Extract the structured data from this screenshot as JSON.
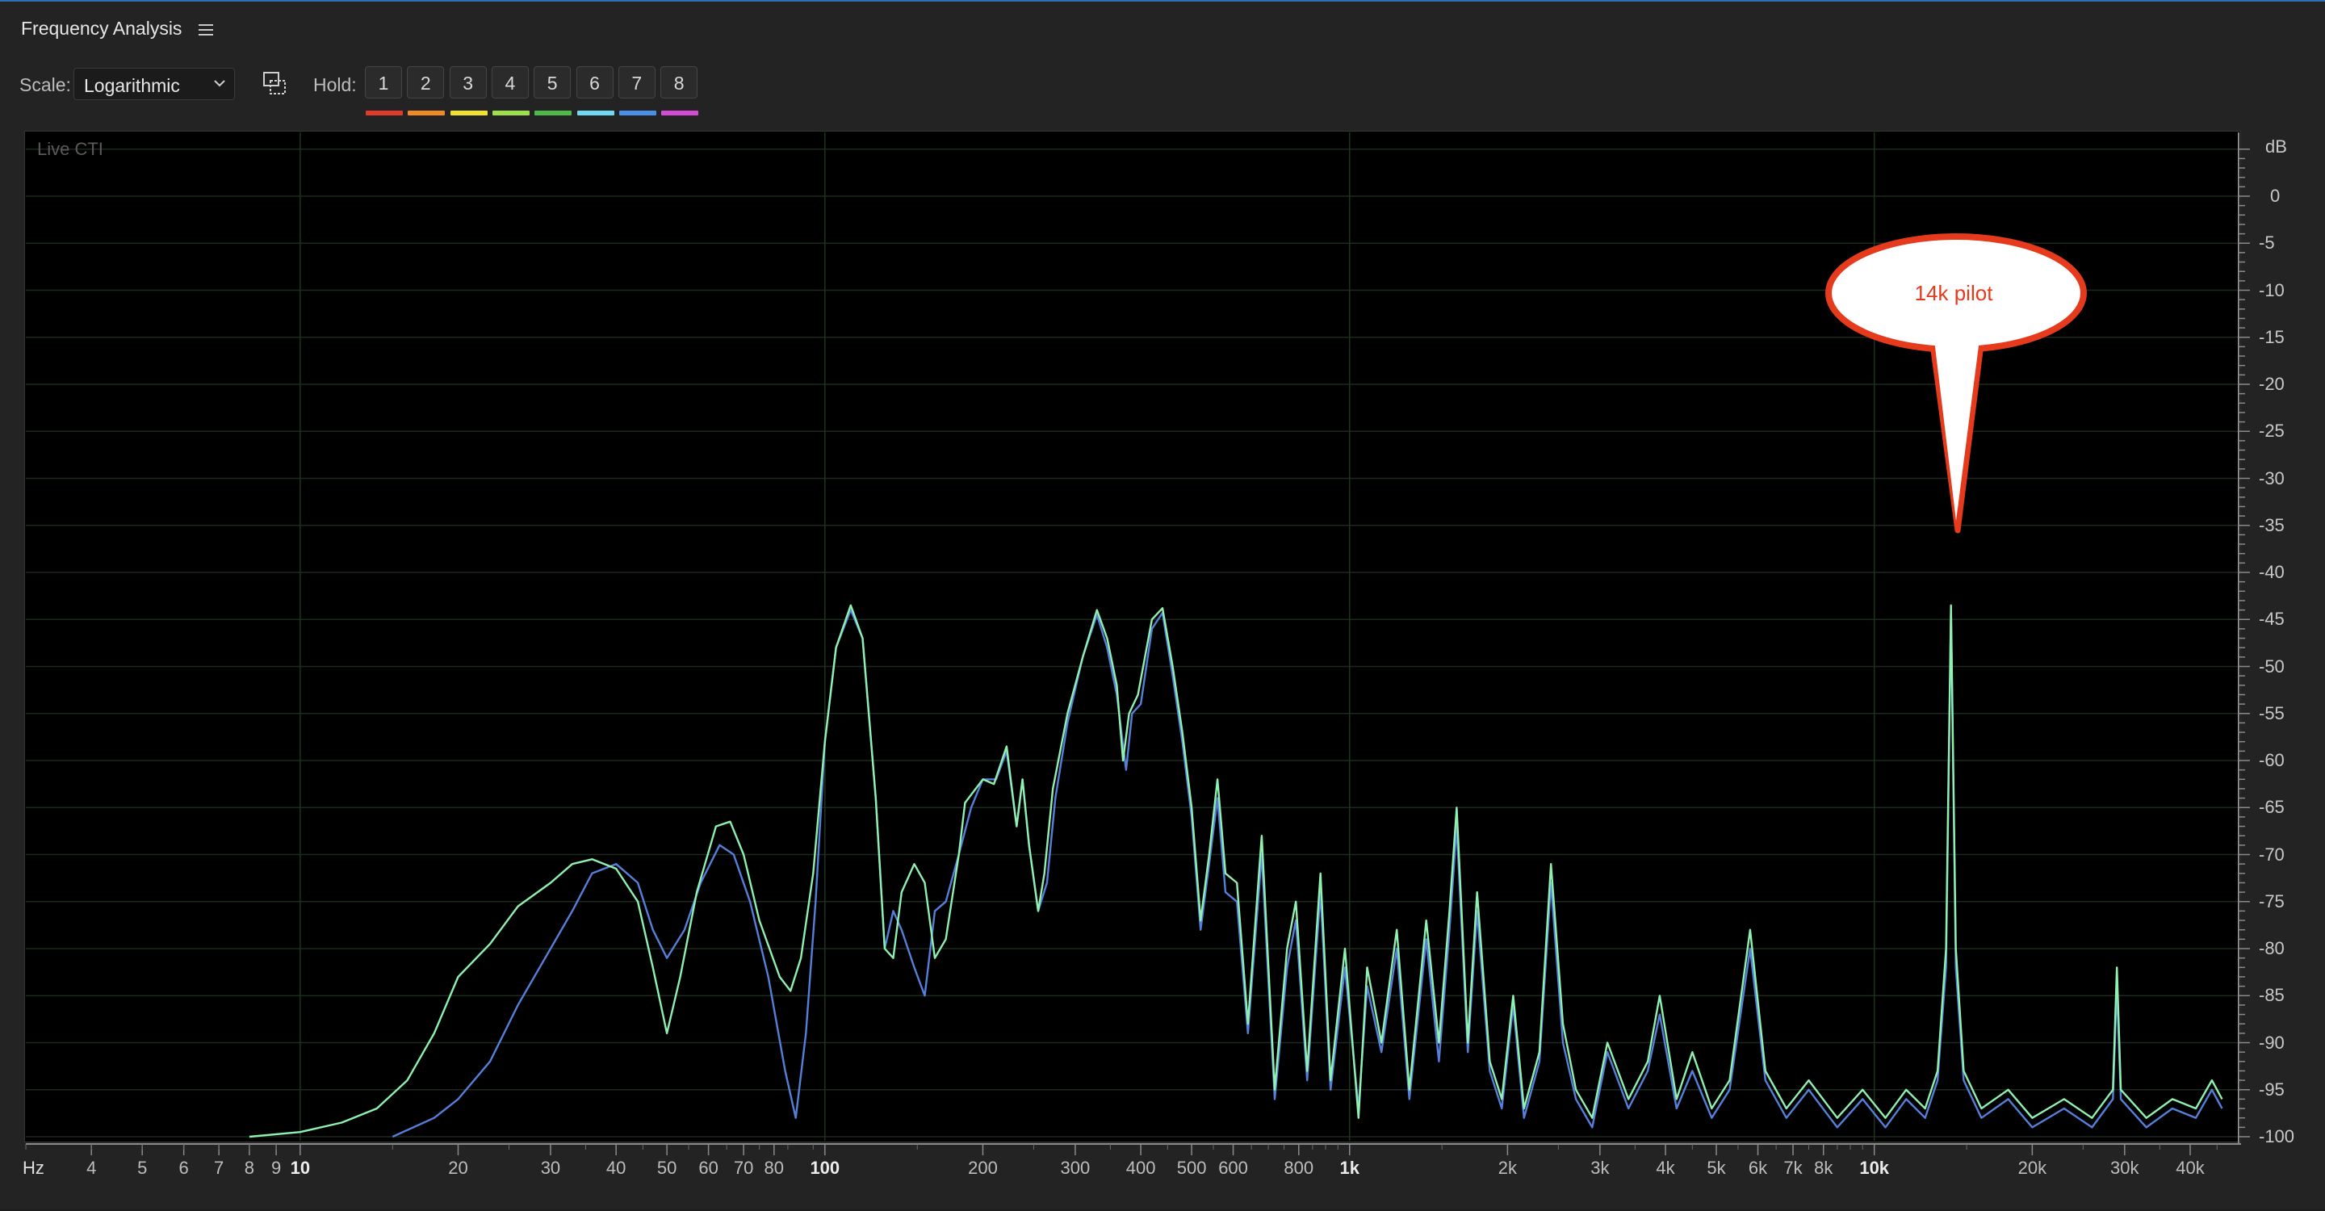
{
  "panel": {
    "title": "Frequency Analysis",
    "menu_icon": "hamburger-menu-icon"
  },
  "toolbar": {
    "scale_label": "Scale:",
    "scale_value": "Logarithmic",
    "hold_label": "Hold:",
    "hold_buttons": [
      {
        "label": "1",
        "color": "#e03a2b"
      },
      {
        "label": "2",
        "color": "#f08a24"
      },
      {
        "label": "3",
        "color": "#f0e130"
      },
      {
        "label": "4",
        "color": "#9ee04a"
      },
      {
        "label": "5",
        "color": "#4fb84a"
      },
      {
        "label": "6",
        "color": "#6fd8f2"
      },
      {
        "label": "7",
        "color": "#4a8fe8"
      },
      {
        "label": "8",
        "color": "#d64ad8"
      }
    ]
  },
  "graph": {
    "overlay_label": "Live CTI"
  },
  "axis": {
    "db_unit": "dB",
    "db_ticks": [
      "0",
      "-5",
      "-10",
      "-15",
      "-20",
      "-25",
      "-30",
      "-35",
      "-40",
      "-45",
      "-50",
      "-55",
      "-60",
      "-65",
      "-70",
      "-75",
      "-80",
      "-85",
      "-90",
      "-95",
      "-100"
    ],
    "hz_unit": "Hz",
    "hz_ticks": [
      {
        "label": "4",
        "f": 4
      },
      {
        "label": "5",
        "f": 5
      },
      {
        "label": "6",
        "f": 6
      },
      {
        "label": "7",
        "f": 7
      },
      {
        "label": "8",
        "f": 8
      },
      {
        "label": "9",
        "f": 9
      },
      {
        "label": "10",
        "f": 10,
        "major": true
      },
      {
        "label": "20",
        "f": 20
      },
      {
        "label": "30",
        "f": 30
      },
      {
        "label": "40",
        "f": 40
      },
      {
        "label": "50",
        "f": 50
      },
      {
        "label": "60",
        "f": 60
      },
      {
        "label": "70",
        "f": 70
      },
      {
        "label": "80",
        "f": 80
      },
      {
        "label": "100",
        "f": 100,
        "major": true
      },
      {
        "label": "200",
        "f": 200
      },
      {
        "label": "300",
        "f": 300
      },
      {
        "label": "400",
        "f": 400
      },
      {
        "label": "500",
        "f": 500
      },
      {
        "label": "600",
        "f": 600
      },
      {
        "label": "800",
        "f": 800
      },
      {
        "label": "1k",
        "f": 1000,
        "major": true
      },
      {
        "label": "2k",
        "f": 2000
      },
      {
        "label": "3k",
        "f": 3000
      },
      {
        "label": "4k",
        "f": 4000
      },
      {
        "label": "5k",
        "f": 5000
      },
      {
        "label": "6k",
        "f": 6000
      },
      {
        "label": "7k",
        "f": 7000
      },
      {
        "label": "8k",
        "f": 8000
      },
      {
        "label": "10k",
        "f": 10000,
        "major": true
      },
      {
        "label": "20k",
        "f": 20000
      },
      {
        "label": "30k",
        "f": 30000
      },
      {
        "label": "40k",
        "f": 40000
      }
    ]
  },
  "annotation": {
    "text": "14k pilot",
    "color": "#e53a1c"
  },
  "chart_data": {
    "type": "line",
    "x_scale": "log",
    "xlim": [
      3,
      50000
    ],
    "ylim": [
      -100,
      5
    ],
    "grid": true,
    "series": [
      {
        "color": "#8ff0b0",
        "points": [
          [
            8,
            -100
          ],
          [
            10,
            -99.5
          ],
          [
            12,
            -98.5
          ],
          [
            14,
            -97
          ],
          [
            16,
            -94
          ],
          [
            18,
            -89
          ],
          [
            20,
            -83
          ],
          [
            23,
            -79.5
          ],
          [
            26,
            -75.5
          ],
          [
            30,
            -73
          ],
          [
            33,
            -71
          ],
          [
            36,
            -70.5
          ],
          [
            40,
            -71.5
          ],
          [
            44,
            -75
          ],
          [
            47,
            -82
          ],
          [
            50,
            -89
          ],
          [
            53,
            -83
          ],
          [
            57,
            -74
          ],
          [
            62,
            -67
          ],
          [
            66,
            -66.5
          ],
          [
            70,
            -70
          ],
          [
            75,
            -77
          ],
          [
            82,
            -83
          ],
          [
            86,
            -84.5
          ],
          [
            90,
            -81
          ],
          [
            95,
            -72
          ],
          [
            100,
            -58
          ],
          [
            105,
            -48
          ],
          [
            112,
            -43.5
          ],
          [
            118,
            -47
          ],
          [
            125,
            -64
          ],
          [
            130,
            -80
          ],
          [
            135,
            -81
          ],
          [
            140,
            -74
          ],
          [
            148,
            -71
          ],
          [
            155,
            -73
          ],
          [
            162,
            -81
          ],
          [
            170,
            -79
          ],
          [
            180,
            -70
          ],
          [
            185,
            -64.5
          ],
          [
            200,
            -62
          ],
          [
            210,
            -62.5
          ],
          [
            222,
            -58.5
          ],
          [
            232,
            -67
          ],
          [
            238,
            -62
          ],
          [
            245,
            -69
          ],
          [
            255,
            -76
          ],
          [
            262,
            -72
          ],
          [
            272,
            -63
          ],
          [
            290,
            -55
          ],
          [
            310,
            -49
          ],
          [
            330,
            -44
          ],
          [
            345,
            -47
          ],
          [
            360,
            -52
          ],
          [
            370,
            -60
          ],
          [
            380,
            -55
          ],
          [
            395,
            -53
          ],
          [
            420,
            -45
          ],
          [
            440,
            -43.8
          ],
          [
            460,
            -50
          ],
          [
            480,
            -57
          ],
          [
            500,
            -65
          ],
          [
            520,
            -77
          ],
          [
            540,
            -70
          ],
          [
            560,
            -62
          ],
          [
            580,
            -72
          ],
          [
            610,
            -73
          ],
          [
            640,
            -88
          ],
          [
            680,
            -68
          ],
          [
            720,
            -95
          ],
          [
            760,
            -80
          ],
          [
            790,
            -75
          ],
          [
            830,
            -93
          ],
          [
            880,
            -72
          ],
          [
            920,
            -94
          ],
          [
            980,
            -80
          ],
          [
            1040,
            -98
          ],
          [
            1080,
            -82
          ],
          [
            1150,
            -90
          ],
          [
            1230,
            -78
          ],
          [
            1300,
            -95
          ],
          [
            1400,
            -77
          ],
          [
            1480,
            -90
          ],
          [
            1550,
            -76
          ],
          [
            1600,
            -65
          ],
          [
            1680,
            -90
          ],
          [
            1750,
            -74
          ],
          [
            1850,
            -92
          ],
          [
            1950,
            -96
          ],
          [
            2050,
            -85
          ],
          [
            2150,
            -97
          ],
          [
            2300,
            -91
          ],
          [
            2420,
            -71
          ],
          [
            2550,
            -88
          ],
          [
            2700,
            -95
          ],
          [
            2900,
            -98
          ],
          [
            3100,
            -90
          ],
          [
            3400,
            -96
          ],
          [
            3700,
            -92
          ],
          [
            3900,
            -85
          ],
          [
            4200,
            -96
          ],
          [
            4500,
            -91
          ],
          [
            4900,
            -97
          ],
          [
            5300,
            -94
          ],
          [
            5800,
            -78
          ],
          [
            6200,
            -93
          ],
          [
            6800,
            -97
          ],
          [
            7500,
            -94
          ],
          [
            8500,
            -98
          ],
          [
            9500,
            -95
          ],
          [
            10500,
            -98
          ],
          [
            11500,
            -95
          ],
          [
            12500,
            -97
          ],
          [
            13200,
            -93
          ],
          [
            13700,
            -80
          ],
          [
            14000,
            -43.5
          ],
          [
            14300,
            -80
          ],
          [
            14800,
            -93
          ],
          [
            16000,
            -97
          ],
          [
            18000,
            -95
          ],
          [
            20000,
            -98
          ],
          [
            23000,
            -96
          ],
          [
            26000,
            -98
          ],
          [
            28500,
            -95
          ],
          [
            29000,
            -82
          ],
          [
            29500,
            -95
          ],
          [
            33000,
            -98
          ],
          [
            37000,
            -96
          ],
          [
            41000,
            -97
          ],
          [
            44000,
            -94
          ],
          [
            46000,
            -96
          ]
        ]
      },
      {
        "color": "#5b86e6",
        "points": [
          [
            15,
            -100
          ],
          [
            18,
            -98
          ],
          [
            20,
            -96
          ],
          [
            23,
            -92
          ],
          [
            26,
            -86
          ],
          [
            30,
            -80
          ],
          [
            33,
            -76
          ],
          [
            36,
            -72
          ],
          [
            40,
            -71
          ],
          [
            44,
            -73
          ],
          [
            47,
            -78
          ],
          [
            50,
            -81
          ],
          [
            54,
            -78
          ],
          [
            58,
            -73
          ],
          [
            63,
            -69
          ],
          [
            67,
            -70
          ],
          [
            72,
            -75
          ],
          [
            78,
            -83
          ],
          [
            84,
            -93
          ],
          [
            88,
            -98
          ],
          [
            92,
            -89
          ],
          [
            96,
            -75
          ],
          [
            100,
            -58
          ],
          [
            105,
            -48
          ],
          [
            112,
            -44
          ],
          [
            118,
            -47
          ],
          [
            125,
            -64
          ],
          [
            130,
            -80
          ],
          [
            135,
            -76
          ],
          [
            140,
            -78
          ],
          [
            148,
            -82
          ],
          [
            155,
            -85
          ],
          [
            162,
            -76
          ],
          [
            170,
            -75
          ],
          [
            180,
            -70
          ],
          [
            190,
            -65
          ],
          [
            200,
            -62
          ],
          [
            212,
            -62
          ],
          [
            222,
            -59
          ],
          [
            232,
            -67
          ],
          [
            238,
            -62
          ],
          [
            245,
            -69
          ],
          [
            255,
            -76
          ],
          [
            265,
            -73
          ],
          [
            275,
            -64
          ],
          [
            290,
            -56
          ],
          [
            310,
            -49
          ],
          [
            330,
            -44.5
          ],
          [
            345,
            -48
          ],
          [
            360,
            -53
          ],
          [
            375,
            -61
          ],
          [
            385,
            -55
          ],
          [
            400,
            -54
          ],
          [
            420,
            -46
          ],
          [
            440,
            -44.3
          ],
          [
            460,
            -51
          ],
          [
            480,
            -58
          ],
          [
            500,
            -66
          ],
          [
            520,
            -78
          ],
          [
            540,
            -71
          ],
          [
            560,
            -64
          ],
          [
            580,
            -74
          ],
          [
            610,
            -75
          ],
          [
            640,
            -89
          ],
          [
            680,
            -70
          ],
          [
            720,
            -96
          ],
          [
            760,
            -82
          ],
          [
            790,
            -77
          ],
          [
            830,
            -94
          ],
          [
            880,
            -74
          ],
          [
            920,
            -95
          ],
          [
            980,
            -82
          ],
          [
            1040,
            -97
          ],
          [
            1080,
            -84
          ],
          [
            1150,
            -91
          ],
          [
            1230,
            -80
          ],
          [
            1300,
            -96
          ],
          [
            1400,
            -79
          ],
          [
            1480,
            -92
          ],
          [
            1550,
            -78
          ],
          [
            1600,
            -67
          ],
          [
            1680,
            -91
          ],
          [
            1750,
            -76
          ],
          [
            1850,
            -93
          ],
          [
            1950,
            -97
          ],
          [
            2050,
            -86
          ],
          [
            2150,
            -98
          ],
          [
            2300,
            -92
          ],
          [
            2420,
            -73
          ],
          [
            2550,
            -90
          ],
          [
            2700,
            -96
          ],
          [
            2900,
            -99
          ],
          [
            3100,
            -91
          ],
          [
            3400,
            -97
          ],
          [
            3700,
            -93
          ],
          [
            3900,
            -87
          ],
          [
            4200,
            -97
          ],
          [
            4500,
            -93
          ],
          [
            4900,
            -98
          ],
          [
            5300,
            -95
          ],
          [
            5800,
            -80
          ],
          [
            6200,
            -94
          ],
          [
            6800,
            -98
          ],
          [
            7500,
            -95
          ],
          [
            8500,
            -99
          ],
          [
            9500,
            -96
          ],
          [
            10500,
            -99
          ],
          [
            11500,
            -96
          ],
          [
            12500,
            -98
          ],
          [
            13200,
            -94
          ],
          [
            13700,
            -82
          ],
          [
            14000,
            -44
          ],
          [
            14300,
            -82
          ],
          [
            14800,
            -94
          ],
          [
            16000,
            -98
          ],
          [
            18000,
            -96
          ],
          [
            20000,
            -99
          ],
          [
            23000,
            -97
          ],
          [
            26000,
            -99
          ],
          [
            28500,
            -96
          ],
          [
            29000,
            -84
          ],
          [
            29500,
            -96
          ],
          [
            33000,
            -99
          ],
          [
            37000,
            -97
          ],
          [
            41000,
            -98
          ],
          [
            44000,
            -95
          ],
          [
            46000,
            -97
          ]
        ]
      }
    ]
  }
}
